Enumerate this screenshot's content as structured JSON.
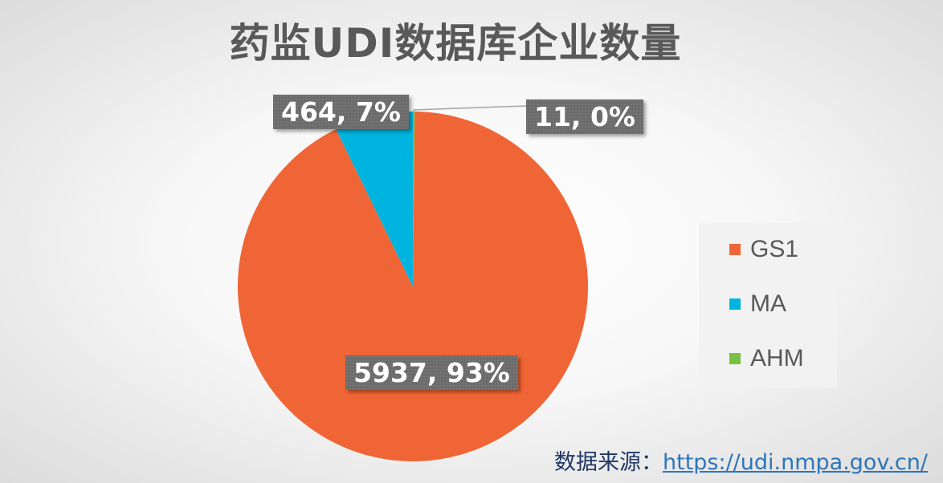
{
  "title": "药监UDI数据库企业数量",
  "chart_data": {
    "type": "pie",
    "title": "药监UDI数据库企业数量",
    "slices": [
      {
        "name": "GS1",
        "value": 5937,
        "percent_label": "93%",
        "label": "5937, 93%",
        "color": "#f06535"
      },
      {
        "name": "MA",
        "value": 464,
        "percent_label": "7%",
        "label": "464, 7%",
        "color": "#00b4e0"
      },
      {
        "name": "AHM",
        "value": 11,
        "percent_label": "0%",
        "label": "11, 0%",
        "color": "#7ac143"
      }
    ],
    "start_angle": "12 o'clock, clockwise order: AHM, GS1, MA",
    "legend_position": "right"
  },
  "legend": {
    "items": [
      {
        "name": "GS1",
        "color": "#f06535"
      },
      {
        "name": "MA",
        "color": "#00b4e0"
      },
      {
        "name": "AHM",
        "color": "#7ac143"
      }
    ]
  },
  "source": {
    "label": "数据来源：",
    "url": "https://udi.nmpa.gov.cn/"
  }
}
